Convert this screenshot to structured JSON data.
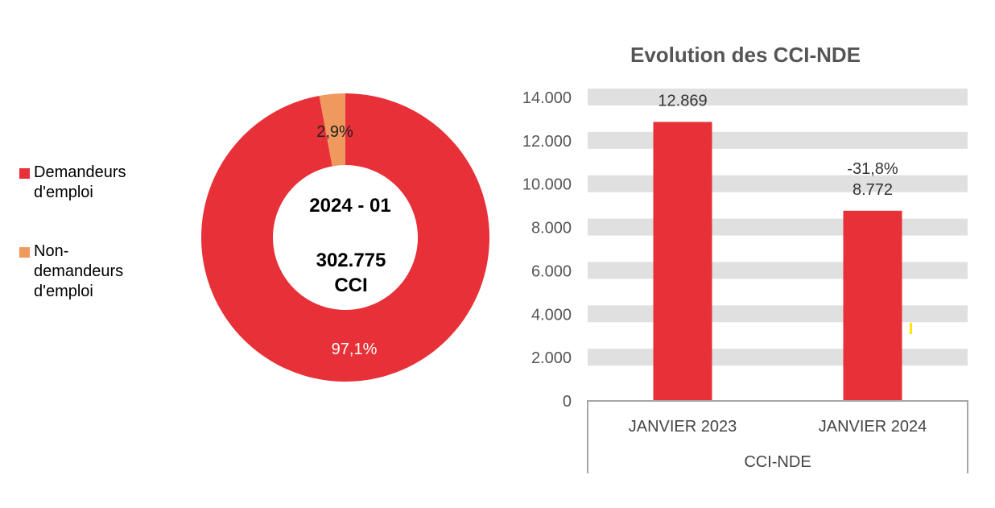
{
  "chart_data": [
    {
      "type": "pie",
      "variant": "donut",
      "center_label": {
        "period": "2024 - 01",
        "total": "302.775",
        "unit": "CCI"
      },
      "slices": [
        {
          "name": "Demandeurs d'emploi",
          "value": 97.1,
          "label": "97,1%",
          "color": "#E83038"
        },
        {
          "name": "Non-demandeurs d'emploi",
          "value": 2.9,
          "label": "2,9%",
          "color": "#F0995E"
        }
      ],
      "legend_position": "left"
    },
    {
      "type": "bar",
      "title": "Evolution des CCI-NDE",
      "categories": [
        "JANVIER 2023",
        "JANVIER 2024"
      ],
      "group_label": "CCI-NDE",
      "values": [
        12869,
        8772
      ],
      "data_labels": [
        "12.869",
        "8.772"
      ],
      "change_label": "-31,8%",
      "ylim": [
        0,
        14000
      ],
      "yticks": [
        0,
        2000,
        4000,
        6000,
        8000,
        10000,
        12000,
        14000
      ],
      "ytick_labels": [
        "0",
        "2.000",
        "4.000",
        "6.000",
        "8.000",
        "10.000",
        "12.000",
        "14.000"
      ],
      "grid": true,
      "bar_color": "#E83038"
    }
  ]
}
